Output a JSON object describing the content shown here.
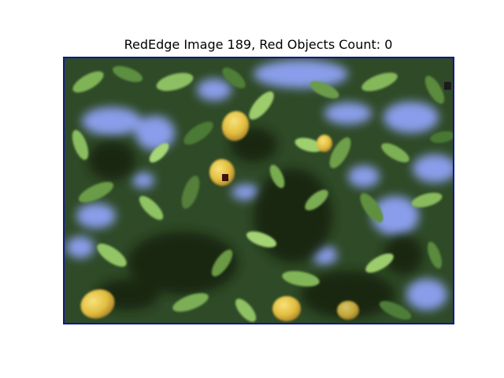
{
  "figure": {
    "title": "RedEdge Image 189, Red Objects Count: 0"
  },
  "colors": {
    "frame": "#10169a",
    "sky": "#8fa2f6",
    "foliage_dark": "#1e3419",
    "foliage_mid": "#3f6a30",
    "foliage_light": "#86b65c",
    "pear": "#e2c04a",
    "blemish": "#3a140d"
  },
  "pears": [
    {
      "name": "pear-top-center"
    },
    {
      "name": "pear-center-left"
    },
    {
      "name": "pear-right-upper"
    },
    {
      "name": "pear-bottom-left"
    },
    {
      "name": "pear-bottom-center"
    },
    {
      "name": "pear-bottom-right"
    }
  ]
}
